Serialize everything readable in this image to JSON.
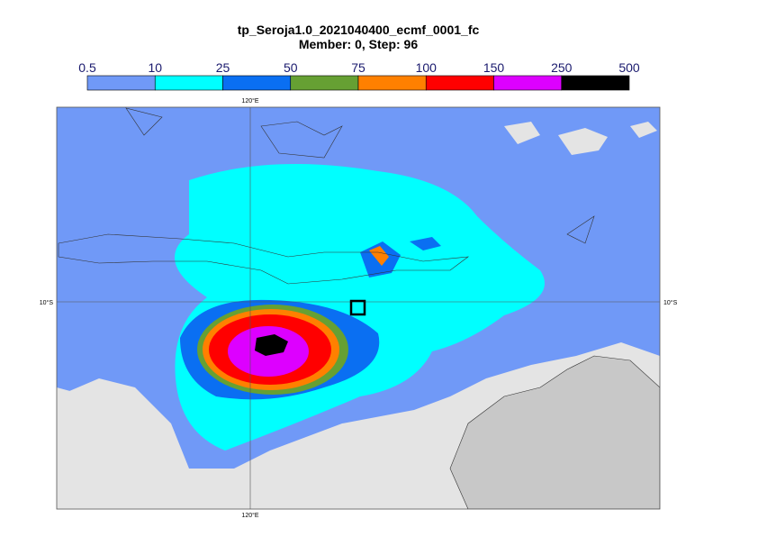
{
  "title": "tp_Seroja1.0_2021040400_ecmf_0001_fc",
  "subtitle": "Member: 0, Step: 96",
  "colorbar": {
    "ticks": [
      0.5,
      10,
      25,
      50,
      75,
      100,
      150,
      250,
      500
    ],
    "colors": [
      "#7099f7",
      "#00ffff",
      "#0a6ff2",
      "#66a033",
      "#ff8000",
      "#ff0000",
      "#dd00ff",
      "#000000"
    ]
  },
  "map": {
    "lon_label": "120°E",
    "lat_label": "10°S"
  }
}
